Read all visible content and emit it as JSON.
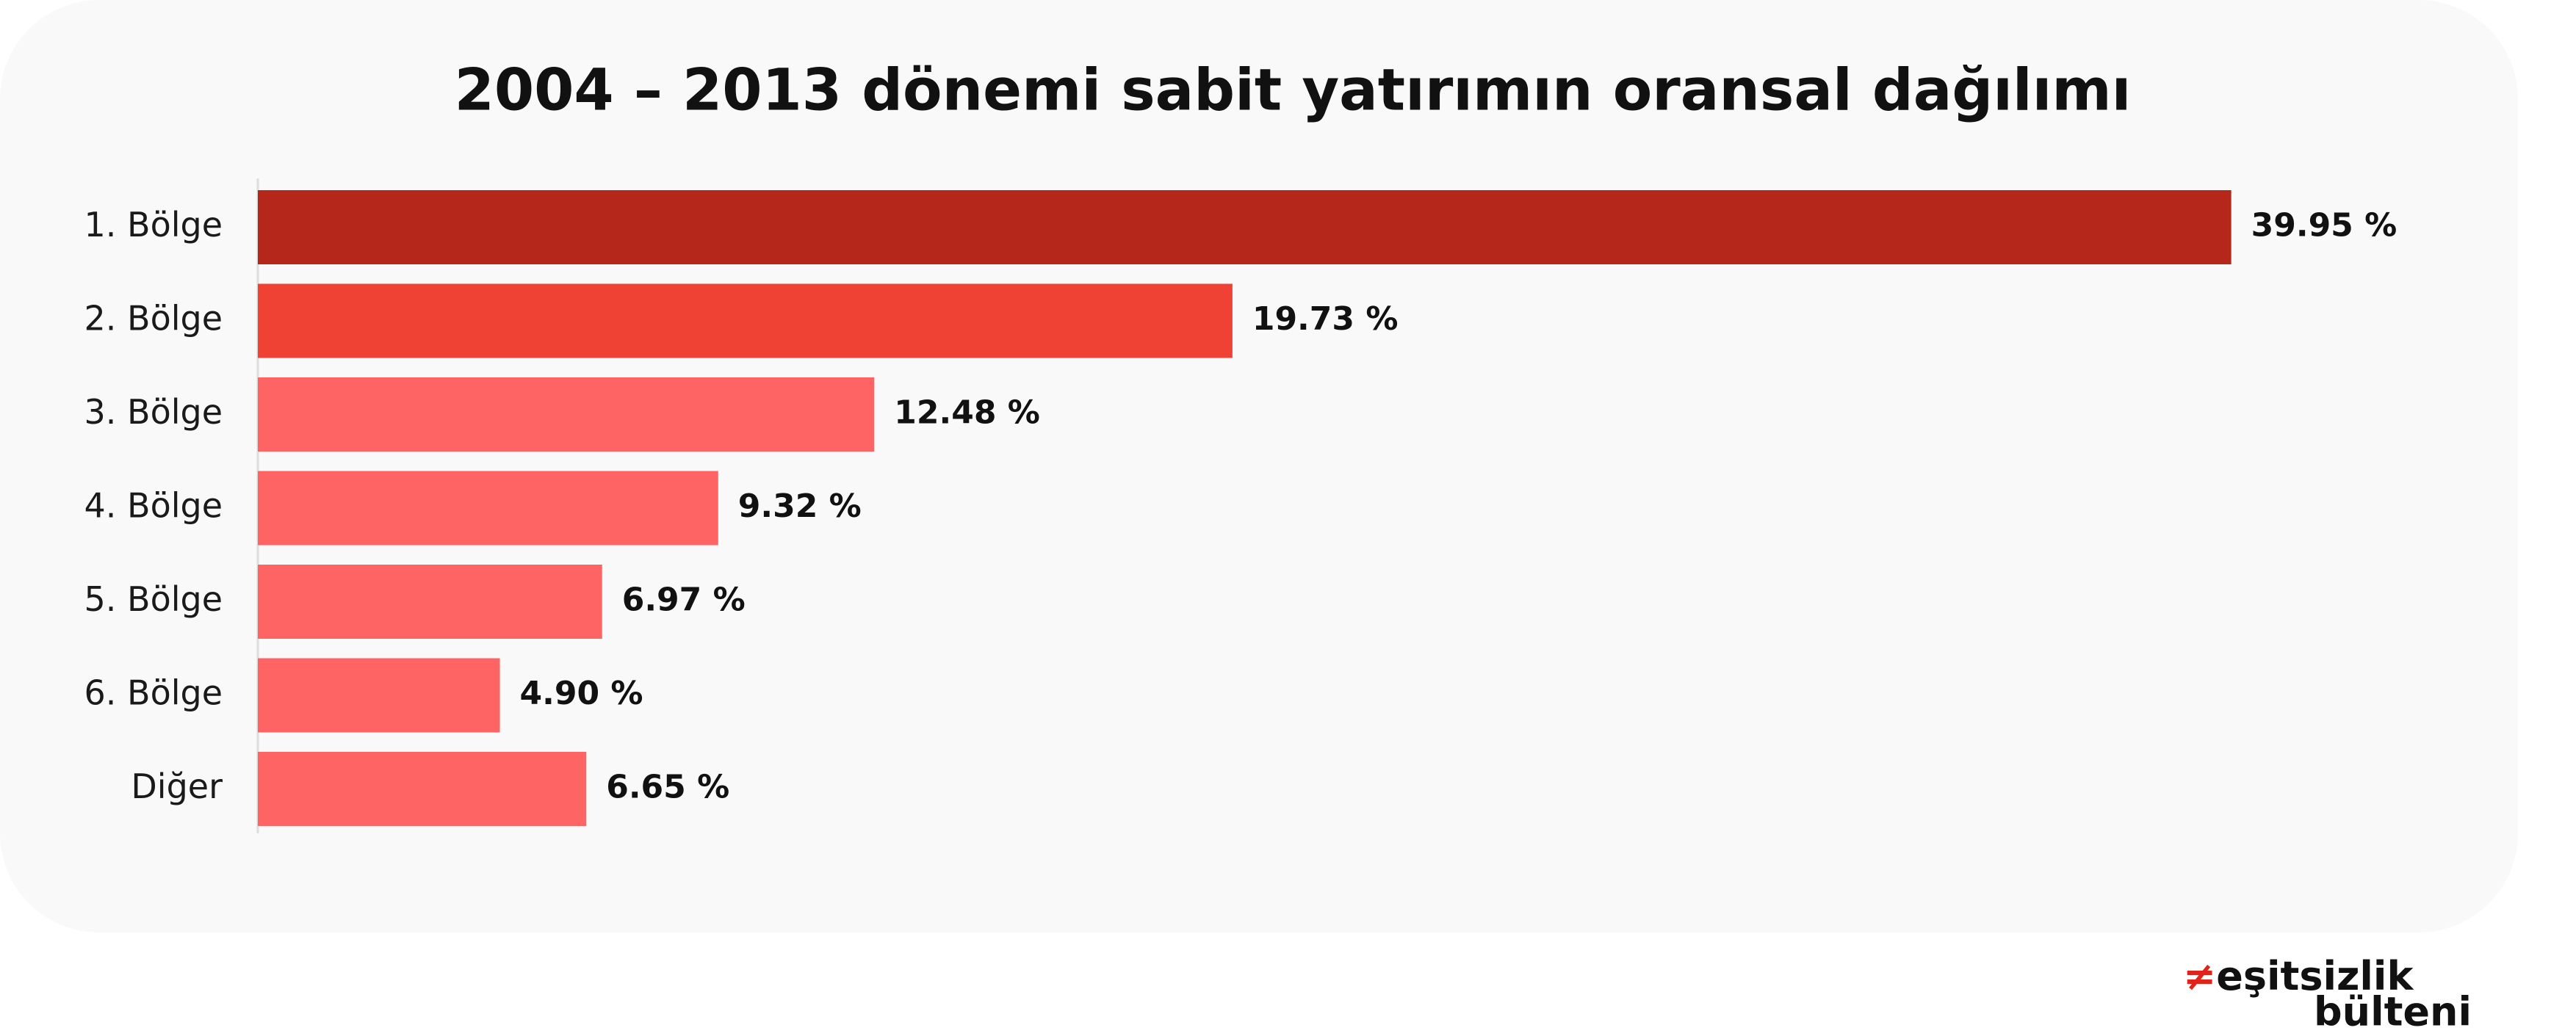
{
  "chart_data": {
    "type": "bar",
    "orientation": "horizontal",
    "title": "2004 – 2013 dönemi sabit yatırımın oransal dağılımı",
    "categories": [
      "1. Bölge",
      "2. Bölge",
      "3. Bölge",
      "4. Bölge",
      "5. Bölge",
      "6. Bölge",
      "Diğer"
    ],
    "values": [
      39.95,
      19.73,
      12.48,
      9.32,
      6.97,
      4.9,
      6.65
    ],
    "value_labels": [
      "39.95 %",
      "19.73 %",
      "12.48 %",
      "9.32 %",
      "6.97 %",
      "4.90 %",
      "6.65 %"
    ],
    "colors": [
      "#b5271b",
      "#ef4234",
      "#ff6464",
      "#ff6464",
      "#ff6464",
      "#ff6464",
      "#ff6464"
    ],
    "xlim": [
      0,
      40
    ]
  },
  "logo": {
    "symbol": "≠",
    "line1": "eşitsizlik",
    "line2": "bülteni"
  }
}
